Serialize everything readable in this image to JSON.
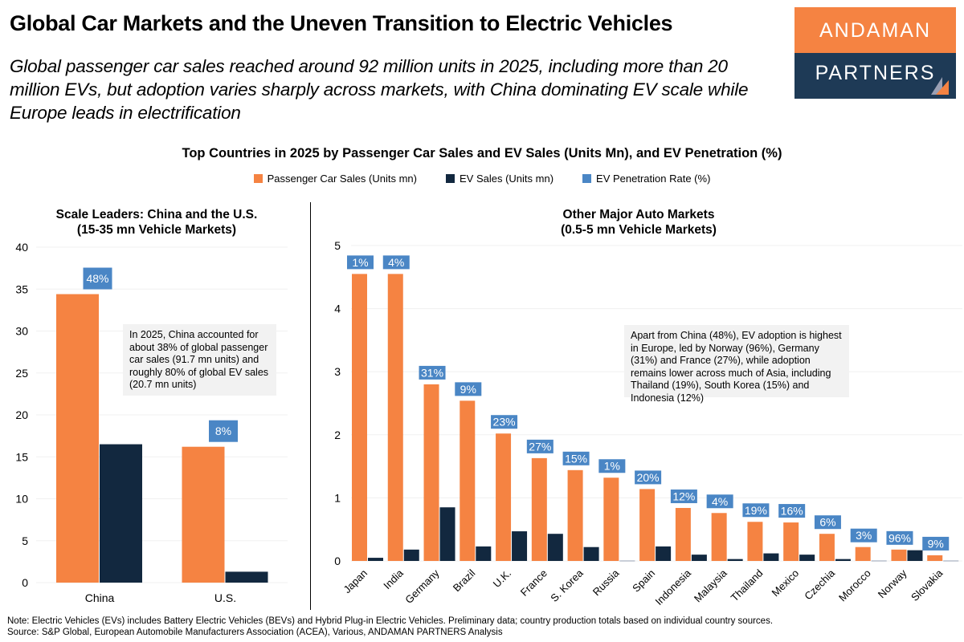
{
  "header": {
    "title": "Global Car Markets and the Uneven Transition to Electric Vehicles",
    "subtitle": "Global passenger car sales reached around 92 million units in 2025, including more than 20 million EVs, but adoption varies sharply across markets, with China dominating EV scale while Europe leads in electrification"
  },
  "logo": {
    "line1": "ANDAMAN",
    "line2": "PARTNERS"
  },
  "colors": {
    "car_sales": "#f58342",
    "ev_sales": "#12283f",
    "penetration": "#4a86c5",
    "logo_orange": "#f58342",
    "logo_navy": "#1e3a56"
  },
  "footer": {
    "note": "Note: Electric Vehicles (EVs) includes Battery Electric Vehicles (BEVs) and Hybrid Plug-in Electric Vehicles. Preliminary data; country production totals based on individual country sources.",
    "source": "Source: S&P Global, European Automobile Manufacturers Association (ACEA), Various, ANDAMAN PARTNERS Analysis"
  },
  "chart_data": [
    {
      "type": "bar",
      "title": "Top Countries in 2025 by Passenger Car Sales and EV Sales (Units Mn), and EV Penetration (%)",
      "legend": [
        "Passenger Car Sales (Units mn)",
        "EV Sales (Units mn)",
        "EV Penetration Rate (%)"
      ],
      "legend_position": "top",
      "subtitle_line1": "Scale Leaders: China and the U.S.",
      "subtitle_line2": "(15-35 mn Vehicle Markets)",
      "categories": [
        "China",
        "U.S."
      ],
      "series": [
        {
          "name": "Passenger Car Sales (Units mn)",
          "values": [
            34.4,
            16.2
          ]
        },
        {
          "name": "EV Sales (Units mn)",
          "values": [
            16.5,
            1.3
          ]
        }
      ],
      "penetration_labels": [
        "48%",
        "8%"
      ],
      "ylim": [
        0,
        40
      ],
      "yticks": [
        0,
        5,
        10,
        15,
        20,
        25,
        30,
        35,
        40
      ],
      "grid": true,
      "annotation": "In 2025, China accounted for about 38% of global passenger car sales (91.7 mn units) and roughly 80% of global EV sales (20.7 mn units)"
    },
    {
      "type": "bar",
      "subtitle_line1": "Other Major Auto Markets",
      "subtitle_line2": "(0.5-5 mn Vehicle Markets)",
      "categories": [
        "Japan",
        "India",
        "Germany",
        "Brazil",
        "U.K.",
        "France",
        "S. Korea",
        "Russia",
        "Spain",
        "Indonesia",
        "Malaysia",
        "Thailand",
        "Mexico",
        "Czechia",
        "Morocco",
        "Norway",
        "Slovakia"
      ],
      "series": [
        {
          "name": "Passenger Car Sales (Units mn)",
          "values": [
            4.55,
            4.55,
            2.8,
            2.54,
            2.02,
            1.63,
            1.44,
            1.32,
            1.14,
            0.84,
            0.76,
            0.62,
            0.61,
            0.43,
            0.22,
            0.18,
            0.09
          ]
        },
        {
          "name": "EV Sales (Units mn)",
          "values": [
            0.05,
            0.18,
            0.85,
            0.23,
            0.47,
            0.43,
            0.22,
            0.01,
            0.23,
            0.1,
            0.03,
            0.12,
            0.1,
            0.03,
            0.01,
            0.17,
            0.01
          ]
        }
      ],
      "penetration_labels": [
        "1%",
        "4%",
        "31%",
        "9%",
        "23%",
        "27%",
        "15%",
        "1%",
        "20%",
        "12%",
        "4%",
        "19%",
        "16%",
        "6%",
        "3%",
        "96%",
        "9%"
      ],
      "ylim": [
        0,
        5
      ],
      "yticks": [
        0,
        1,
        2,
        3,
        4,
        5
      ],
      "grid": true,
      "annotation": "Apart from China (48%), EV adoption is highest in Europe, led by Norway (96%), Germany (31%) and France (27%), while adoption remains lower across much of Asia, including Thailand (19%), South Korea (15%) and Indonesia (12%)"
    }
  ]
}
